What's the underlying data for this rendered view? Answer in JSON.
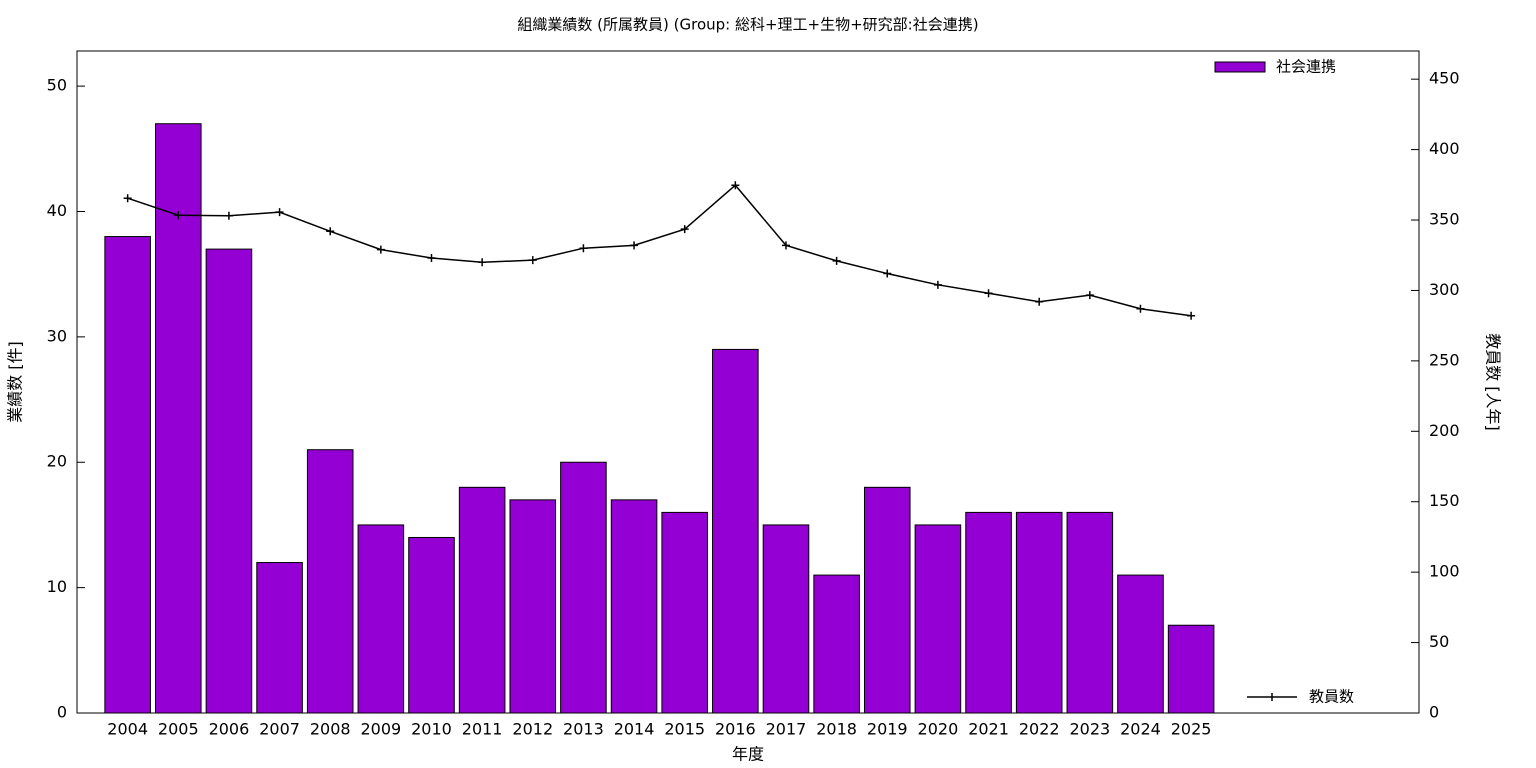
{
  "chart_data": {
    "type": "bar",
    "title": "組織業績数 (所属教員) (Group: 総科+理工+生物+研究部:社会連携)",
    "x_label": "年度",
    "y_label": "業績数 [件]",
    "y2_label": "教員数 [人年]",
    "x": [
      2004,
      2005,
      2006,
      2007,
      2008,
      2009,
      2010,
      2011,
      2012,
      2013,
      2014,
      2015,
      2016,
      2017,
      2018,
      2019,
      2020,
      2021,
      2022,
      2023,
      2024,
      2025
    ],
    "xlim": [
      2003,
      2029.5
    ],
    "xticks": [
      2004,
      2005,
      2006,
      2007,
      2008,
      2009,
      2010,
      2011,
      2012,
      2013,
      2014,
      2015,
      2016,
      2017,
      2018,
      2019,
      2020,
      2021,
      2022,
      2023,
      2024,
      2025
    ],
    "ylim": [
      0,
      52.8
    ],
    "yticks": [
      0,
      10,
      20,
      30,
      40,
      50
    ],
    "y2lim": [
      0,
      470
    ],
    "y2ticks": [
      0,
      50,
      100,
      150,
      200,
      250,
      300,
      350,
      400,
      450
    ],
    "series": [
      {
        "name": "社会連携",
        "type": "bar",
        "color": "#9400d3",
        "axis": "y",
        "values": [
          38,
          47,
          37,
          12,
          21,
          15,
          14,
          18,
          17,
          20,
          17,
          16,
          29,
          15,
          11,
          18,
          15,
          16,
          16,
          16,
          11,
          7
        ]
      },
      {
        "name": "教員数",
        "type": "line",
        "color": "#000000",
        "axis": "y2",
        "values": [
          365.5,
          353.4,
          353,
          355.6,
          342,
          329,
          323,
          320,
          321.5,
          330,
          332,
          343.5,
          374.7,
          332,
          321,
          312,
          304,
          298,
          292,
          296.7,
          287,
          282
        ]
      }
    ]
  }
}
